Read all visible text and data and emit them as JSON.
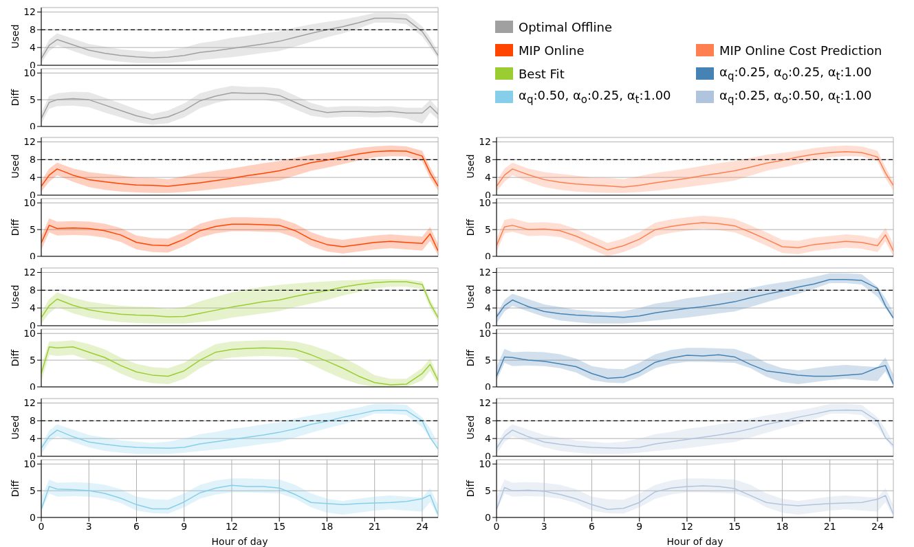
{
  "chart_data": [
    {
      "type": "line",
      "ylabel": "Used",
      "x": [
        0,
        0.5,
        1,
        2,
        3,
        4,
        5,
        6,
        7,
        8,
        9,
        10,
        11,
        12,
        13,
        14,
        15,
        16,
        17,
        18,
        19,
        20,
        21,
        22,
        23,
        24,
        24.5,
        25
      ],
      "xlim": [
        0,
        25
      ],
      "xticks": [
        0,
        3,
        6,
        9,
        12,
        15,
        18,
        21,
        24
      ],
      "ylim": [
        0,
        13
      ],
      "yticks": [
        0,
        4,
        8,
        12
      ],
      "grid": true,
      "tick_labels": "y",
      "legend": "top right",
      "ref_lines": [
        {
          "axis": "y",
          "value": 8,
          "color": "#000000",
          "line_style": "dashed"
        }
      ],
      "series": [
        {
          "name": "Optimal Offline",
          "color": "#a0a0a0",
          "values": [
            1.5,
            4.5,
            5.8,
            4.6,
            3.4,
            2.7,
            2.2,
            1.9,
            1.7,
            1.8,
            2.2,
            2.9,
            3.3,
            3.8,
            4.3,
            4.8,
            5.4,
            6.3,
            7.2,
            8.0,
            8.7,
            9.6,
            10.6,
            10.6,
            10.4,
            7.6,
            5.0,
            2.2
          ],
          "lower": [
            0.5,
            3.2,
            4.5,
            3.2,
            2.0,
            1.2,
            0.8,
            0.5,
            0.5,
            0.5,
            0.8,
            1.2,
            1.5,
            1.8,
            2.3,
            2.8,
            3.2,
            4.2,
            5.3,
            6.3,
            7.2,
            8.3,
            9.6,
            9.6,
            9.3,
            6.5,
            4.0,
            1.5
          ],
          "upper": [
            2.5,
            5.8,
            7.2,
            6.0,
            4.8,
            4.2,
            3.6,
            3.3,
            3.0,
            3.3,
            4.0,
            5.0,
            5.5,
            6.2,
            6.6,
            7.2,
            7.7,
            8.5,
            9.2,
            9.8,
            10.3,
            11.0,
            11.8,
            11.8,
            11.6,
            8.8,
            6.2,
            3.0
          ]
        }
      ]
    },
    {
      "type": "line",
      "ylabel": "Diff",
      "x": [
        0,
        0.5,
        1,
        2,
        3,
        4,
        5,
        6,
        7,
        8,
        9,
        10,
        11,
        12,
        13,
        14,
        15,
        16,
        17,
        18,
        19,
        20,
        21,
        22,
        23,
        24,
        24.5,
        25
      ],
      "xlim": [
        0,
        25
      ],
      "xticks": [
        0,
        3,
        6,
        9,
        12,
        15,
        18,
        21,
        24
      ],
      "ylim": [
        0,
        10.8
      ],
      "yticks": [
        0,
        5,
        10
      ],
      "grid": true,
      "tick_labels": "y",
      "series": [
        {
          "color": "#a0a0a0",
          "values": [
            1.5,
            4.5,
            5.0,
            5.2,
            5.0,
            4.0,
            3.0,
            2.0,
            1.3,
            1.8,
            3.0,
            4.8,
            5.7,
            6.3,
            6.2,
            6.2,
            5.8,
            4.5,
            3.2,
            2.6,
            2.8,
            2.8,
            2.7,
            2.8,
            2.5,
            2.5,
            3.8,
            2.3
          ],
          "lower": [
            0.5,
            3.3,
            3.8,
            3.9,
            3.6,
            2.6,
            1.7,
            0.8,
            0.3,
            0.6,
            1.7,
            3.4,
            4.4,
            5.0,
            5.0,
            5.0,
            4.5,
            3.2,
            2.0,
            1.6,
            1.8,
            1.8,
            1.7,
            1.8,
            1.5,
            0.5,
            2.6,
            1.3
          ],
          "upper": [
            2.5,
            5.7,
            6.2,
            6.5,
            6.4,
            5.4,
            4.3,
            3.2,
            2.3,
            3.0,
            4.3,
            6.2,
            7.0,
            7.6,
            7.4,
            7.4,
            7.1,
            5.8,
            4.4,
            3.6,
            3.8,
            3.8,
            3.7,
            3.8,
            3.5,
            3.5,
            5.0,
            3.3
          ]
        }
      ]
    },
    {
      "type": "line",
      "ylabel": "Used",
      "x": [
        0,
        0.5,
        1,
        2,
        3,
        4,
        5,
        6,
        7,
        8,
        9,
        10,
        11,
        12,
        13,
        14,
        15,
        16,
        17,
        18,
        19,
        20,
        21,
        22,
        23,
        24,
        24.5,
        25
      ],
      "xlim": [
        0,
        25
      ],
      "xticks": [
        0,
        3,
        6,
        9,
        12,
        15,
        18,
        21,
        24
      ],
      "ylim": [
        0,
        13
      ],
      "yticks": [
        0,
        4,
        8,
        12
      ],
      "grid": true,
      "tick_labels": "y",
      "legend": "top right",
      "ref_lines": [
        {
          "axis": "y",
          "value": 8,
          "color": "#000000",
          "line_style": "dashed"
        }
      ],
      "series": [
        {
          "name": "MIP Online",
          "color": "#ff4500",
          "values": [
            2.0,
            4.5,
            5.9,
            4.5,
            3.5,
            3.0,
            2.6,
            2.3,
            2.2,
            2.0,
            2.4,
            2.8,
            3.3,
            3.8,
            4.4,
            4.9,
            5.5,
            6.4,
            7.3,
            7.9,
            8.6,
            9.3,
            9.8,
            10.0,
            9.9,
            8.8,
            5.0,
            2.0
          ],
          "lower": [
            0.8,
            3.0,
            4.5,
            3.0,
            1.8,
            1.2,
            0.8,
            0.6,
            0.5,
            0.5,
            0.7,
            1.0,
            1.4,
            1.8,
            2.3,
            2.8,
            3.3,
            4.4,
            5.5,
            6.2,
            7.0,
            7.8,
            8.5,
            8.8,
            8.7,
            7.6,
            3.8,
            1.0
          ],
          "upper": [
            3.2,
            6.0,
            7.3,
            6.0,
            5.2,
            4.8,
            4.4,
            4.0,
            3.9,
            3.6,
            4.3,
            5.0,
            5.5,
            6.0,
            6.6,
            7.2,
            7.7,
            8.4,
            9.1,
            9.5,
            10.0,
            10.6,
            11.0,
            11.2,
            11.0,
            10.0,
            6.3,
            3.0
          ]
        }
      ]
    },
    {
      "type": "line",
      "ylabel": "Diff",
      "x": [
        0,
        0.5,
        1,
        2,
        3,
        4,
        5,
        6,
        7,
        8,
        9,
        10,
        11,
        12,
        13,
        14,
        15,
        16,
        17,
        18,
        19,
        20,
        21,
        22,
        23,
        24,
        24.5,
        25
      ],
      "xlim": [
        0,
        25
      ],
      "xticks": [
        0,
        3,
        6,
        9,
        12,
        15,
        18,
        21,
        24
      ],
      "ylim": [
        0,
        10.8
      ],
      "yticks": [
        0,
        5,
        10
      ],
      "grid": true,
      "tick_labels": "y",
      "series": [
        {
          "color": "#ff4500",
          "values": [
            2.5,
            5.8,
            5.2,
            5.3,
            5.2,
            4.8,
            4.0,
            2.6,
            2.1,
            2.0,
            3.2,
            4.8,
            5.6,
            6.0,
            6.0,
            5.9,
            5.8,
            4.8,
            3.2,
            2.2,
            1.8,
            2.2,
            2.6,
            2.8,
            2.6,
            2.4,
            4.2,
            1.0
          ],
          "lower": [
            1.2,
            4.5,
            3.9,
            4.0,
            3.9,
            3.5,
            2.7,
            1.3,
            0.8,
            0.7,
            1.9,
            3.5,
            4.3,
            4.7,
            4.7,
            4.6,
            4.5,
            3.5,
            1.9,
            0.9,
            0.5,
            0.9,
            1.3,
            1.5,
            1.3,
            1.1,
            2.9,
            0.2
          ],
          "upper": [
            3.8,
            7.1,
            6.5,
            6.6,
            6.5,
            6.1,
            5.3,
            3.9,
            3.4,
            3.3,
            4.5,
            6.1,
            6.9,
            7.3,
            7.3,
            7.2,
            7.1,
            6.1,
            4.5,
            3.5,
            3.1,
            3.5,
            3.9,
            4.1,
            3.9,
            3.7,
            5.5,
            2.3
          ]
        }
      ]
    },
    {
      "type": "line",
      "ylabel": "Used",
      "x": [
        0,
        0.5,
        1,
        2,
        3,
        4,
        5,
        6,
        7,
        8,
        9,
        10,
        11,
        12,
        13,
        14,
        15,
        16,
        17,
        18,
        19,
        20,
        21,
        22,
        23,
        24,
        24.5,
        25
      ],
      "xlim": [
        0,
        25
      ],
      "xticks": [
        0,
        3,
        6,
        9,
        12,
        15,
        18,
        21,
        24
      ],
      "ylim": [
        0,
        13
      ],
      "yticks": [
        0,
        4,
        8,
        12
      ],
      "grid": true,
      "tick_labels": "y",
      "legend": "top right",
      "ref_lines": [
        {
          "axis": "y",
          "value": 8,
          "color": "#000000",
          "line_style": "dashed"
        }
      ],
      "series": [
        {
          "name": "MIP Online Cost Prediction",
          "color": "#ff7f50",
          "values": [
            2.0,
            4.5,
            5.9,
            4.6,
            3.5,
            2.9,
            2.5,
            2.3,
            2.1,
            1.8,
            2.2,
            2.8,
            3.3,
            3.8,
            4.4,
            4.9,
            5.5,
            6.3,
            7.2,
            7.8,
            8.6,
            9.2,
            9.6,
            9.8,
            9.6,
            8.6,
            5.0,
            2.2
          ],
          "lower": [
            0.8,
            3.0,
            4.5,
            3.0,
            1.8,
            1.2,
            0.8,
            0.6,
            0.5,
            0.5,
            0.7,
            1.0,
            1.4,
            1.8,
            2.3,
            2.8,
            3.3,
            4.4,
            5.5,
            6.2,
            7.0,
            7.8,
            8.5,
            8.8,
            8.7,
            7.6,
            3.8,
            1.0
          ],
          "upper": [
            3.2,
            6.0,
            7.3,
            6.0,
            5.2,
            4.8,
            4.4,
            4.0,
            3.9,
            3.6,
            4.3,
            5.0,
            5.5,
            6.0,
            6.6,
            7.2,
            7.7,
            8.4,
            9.1,
            9.5,
            10.0,
            10.6,
            11.0,
            11.2,
            11.0,
            10.0,
            6.3,
            3.0
          ]
        }
      ]
    },
    {
      "type": "line",
      "ylabel": "Diff",
      "x": [
        0,
        0.5,
        1,
        2,
        3,
        4,
        5,
        6,
        7,
        8,
        9,
        10,
        11,
        12,
        13,
        14,
        15,
        16,
        17,
        18,
        19,
        20,
        21,
        22,
        23,
        24,
        24.5,
        25
      ],
      "xlim": [
        0,
        25
      ],
      "xticks": [
        0,
        3,
        6,
        9,
        12,
        15,
        18,
        21,
        24
      ],
      "ylim": [
        0,
        10.8
      ],
      "yticks": [
        0,
        5,
        10
      ],
      "grid": true,
      "tick_labels": "y",
      "series": [
        {
          "color": "#ff7f50",
          "values": [
            2.0,
            5.5,
            5.8,
            5.0,
            5.1,
            4.8,
            3.8,
            2.5,
            1.2,
            2.0,
            3.2,
            5.0,
            5.6,
            6.0,
            6.3,
            6.1,
            5.7,
            4.5,
            3.2,
            1.8,
            1.6,
            2.2,
            2.5,
            2.8,
            2.6,
            2.0,
            4.0,
            1.0
          ],
          "lower": [
            0.8,
            4.3,
            4.6,
            3.8,
            3.9,
            3.6,
            2.6,
            1.3,
            0.0,
            0.8,
            2.0,
            3.8,
            4.4,
            4.8,
            5.1,
            4.9,
            4.5,
            3.3,
            2.0,
            0.6,
            0.4,
            1.0,
            1.3,
            1.6,
            1.4,
            0.8,
            2.8,
            0.0
          ],
          "upper": [
            3.3,
            6.8,
            7.1,
            6.3,
            6.4,
            6.1,
            5.1,
            3.8,
            2.5,
            3.3,
            4.5,
            6.3,
            6.9,
            7.3,
            7.6,
            7.4,
            7.0,
            5.8,
            4.5,
            3.1,
            2.9,
            3.5,
            3.8,
            4.1,
            3.9,
            3.3,
            5.3,
            2.3
          ]
        }
      ]
    },
    {
      "type": "line",
      "ylabel": "Used",
      "x": [
        0,
        0.5,
        1,
        2,
        3,
        4,
        5,
        6,
        7,
        8,
        9,
        10,
        11,
        12,
        13,
        14,
        15,
        16,
        17,
        18,
        19,
        20,
        21,
        22,
        23,
        24,
        24.5,
        25
      ],
      "xlim": [
        0,
        25
      ],
      "xticks": [
        0,
        3,
        6,
        9,
        12,
        15,
        18,
        21,
        24
      ],
      "ylim": [
        0,
        13
      ],
      "yticks": [
        0,
        4,
        8,
        12
      ],
      "grid": true,
      "tick_labels": "y",
      "legend": "top right",
      "ref_lines": [
        {
          "axis": "y",
          "value": 8,
          "color": "#000000",
          "line_style": "dashed"
        }
      ],
      "series": [
        {
          "name": "Best Fit",
          "color": "#9acd32",
          "values": [
            1.8,
            4.5,
            6.0,
            4.6,
            3.6,
            3.0,
            2.6,
            2.4,
            2.3,
            2.0,
            2.1,
            2.8,
            3.5,
            4.2,
            4.8,
            5.4,
            5.8,
            6.6,
            7.3,
            7.9,
            8.7,
            9.3,
            9.7,
            9.9,
            9.9,
            9.3,
            5.0,
            1.8
          ],
          "lower": [
            0.5,
            2.8,
            4.2,
            2.8,
            1.8,
            1.2,
            0.8,
            0.6,
            0.5,
            0.5,
            0.5,
            0.8,
            1.2,
            1.8,
            2.3,
            2.8,
            3.3,
            4.2,
            5.0,
            5.8,
            6.8,
            7.6,
            8.4,
            8.8,
            8.8,
            8.3,
            4.0,
            1.0
          ],
          "upper": [
            3.0,
            6.0,
            7.5,
            6.3,
            5.4,
            4.9,
            4.5,
            4.3,
            4.2,
            3.8,
            4.2,
            5.5,
            6.5,
            7.5,
            8.2,
            8.8,
            9.2,
            9.5,
            9.8,
            10.0,
            10.2,
            10.3,
            10.5,
            10.5,
            10.4,
            10.0,
            6.0,
            2.6
          ]
        }
      ]
    },
    {
      "type": "line",
      "ylabel": "Diff",
      "x": [
        0,
        0.5,
        1,
        2,
        3,
        4,
        5,
        6,
        7,
        8,
        9,
        10,
        11,
        12,
        13,
        14,
        15,
        16,
        17,
        18,
        19,
        20,
        21,
        22,
        23,
        24,
        24.5,
        25
      ],
      "xlim": [
        0,
        25
      ],
      "xticks": [
        0,
        3,
        6,
        9,
        12,
        15,
        18,
        21,
        24
      ],
      "ylim": [
        0,
        10.8
      ],
      "yticks": [
        0,
        5,
        10
      ],
      "grid": true,
      "tick_labels": "y",
      "series": [
        {
          "color": "#9acd32",
          "values": [
            2.5,
            7.5,
            7.3,
            7.5,
            6.5,
            5.5,
            4.0,
            2.8,
            2.2,
            2.0,
            3.0,
            5.0,
            6.5,
            7.0,
            7.2,
            7.3,
            7.2,
            7.0,
            6.0,
            4.8,
            3.5,
            2.0,
            0.8,
            0.4,
            0.5,
            2.5,
            4.2,
            1.2
          ],
          "lower": [
            1.0,
            6.0,
            5.8,
            6.0,
            5.0,
            4.0,
            2.5,
            1.3,
            0.7,
            0.5,
            1.5,
            3.5,
            5.0,
            5.5,
            5.7,
            5.8,
            5.7,
            5.5,
            4.2,
            2.8,
            1.5,
            0.5,
            0.0,
            0.0,
            0.0,
            1.2,
            3.0,
            0.4
          ],
          "upper": [
            4.0,
            8.5,
            8.5,
            8.7,
            8.0,
            7.0,
            5.5,
            4.3,
            3.7,
            3.5,
            4.5,
            6.5,
            8.0,
            8.5,
            8.6,
            8.7,
            8.7,
            8.5,
            7.8,
            6.8,
            5.5,
            4.0,
            2.2,
            1.5,
            1.5,
            3.5,
            5.3,
            2.0
          ]
        }
      ]
    },
    {
      "type": "line",
      "ylabel": "Used",
      "x": [
        0,
        0.5,
        1,
        2,
        3,
        4,
        5,
        6,
        7,
        8,
        9,
        10,
        11,
        12,
        13,
        14,
        15,
        16,
        17,
        18,
        19,
        20,
        21,
        22,
        23,
        24,
        24.5,
        25
      ],
      "xlim": [
        0,
        25
      ],
      "xticks": [
        0,
        3,
        6,
        9,
        12,
        15,
        18,
        21,
        24
      ],
      "ylim": [
        0,
        13
      ],
      "yticks": [
        0,
        4,
        8,
        12
      ],
      "grid": true,
      "tick_labels": "y",
      "legend": "top right",
      "ref_lines": [
        {
          "axis": "y",
          "value": 8,
          "color": "#000000",
          "line_style": "dashed"
        }
      ],
      "series": [
        {
          "name": "α$_{q}$:0.25, α$_{o}$:0.25, α$_{t}$:1.00",
          "color": "#4682b4",
          "values": [
            2.0,
            4.5,
            5.8,
            4.3,
            3.2,
            2.7,
            2.4,
            2.2,
            2.1,
            1.9,
            2.2,
            2.9,
            3.4,
            3.9,
            4.3,
            4.8,
            5.4,
            6.3,
            7.1,
            7.8,
            8.7,
            9.4,
            10.4,
            10.4,
            10.2,
            8.4,
            4.5,
            1.7
          ],
          "lower": [
            0.5,
            3.2,
            4.5,
            3.2,
            2.0,
            1.2,
            0.8,
            0.5,
            0.5,
            0.5,
            0.8,
            1.2,
            1.5,
            1.8,
            2.3,
            2.8,
            3.2,
            4.2,
            5.3,
            6.3,
            7.2,
            8.3,
            9.6,
            9.6,
            9.3,
            6.5,
            4.0,
            1.5
          ],
          "upper": [
            2.5,
            5.8,
            7.2,
            6.0,
            4.8,
            4.2,
            3.6,
            3.3,
            3.0,
            3.3,
            4.0,
            5.0,
            5.5,
            6.2,
            6.6,
            7.2,
            7.7,
            8.5,
            9.2,
            9.8,
            10.3,
            11.0,
            11.8,
            11.8,
            11.6,
            8.8,
            6.2,
            3.0
          ]
        }
      ]
    },
    {
      "type": "line",
      "ylabel": "Diff",
      "x": [
        0,
        0.5,
        1,
        2,
        3,
        4,
        5,
        6,
        7,
        8,
        9,
        10,
        11,
        12,
        13,
        14,
        15,
        16,
        17,
        18,
        19,
        20,
        21,
        22,
        23,
        24,
        24.5,
        25
      ],
      "xlim": [
        0,
        25
      ],
      "xticks": [
        0,
        3,
        6,
        9,
        12,
        15,
        18,
        21,
        24
      ],
      "ylim": [
        0,
        10.8
      ],
      "yticks": [
        0,
        5,
        10
      ],
      "grid": true,
      "tick_labels": "y",
      "series": [
        {
          "color": "#4682b4",
          "values": [
            2.0,
            5.6,
            5.5,
            5.0,
            4.8,
            4.3,
            3.8,
            2.5,
            1.6,
            1.8,
            2.8,
            4.6,
            5.4,
            5.9,
            5.8,
            6.0,
            5.6,
            4.2,
            3.0,
            2.6,
            2.2,
            2.0,
            2.0,
            2.2,
            2.4,
            3.6,
            4.0,
            0.5
          ],
          "lower": [
            1.2,
            4.5,
            3.9,
            4.0,
            3.9,
            3.5,
            2.7,
            1.3,
            0.8,
            0.7,
            1.9,
            3.5,
            4.3,
            4.7,
            4.7,
            4.6,
            4.5,
            3.5,
            1.9,
            0.9,
            0.5,
            0.9,
            1.3,
            1.5,
            1.3,
            1.1,
            2.9,
            0.2
          ],
          "upper": [
            3.8,
            7.1,
            6.5,
            6.6,
            6.5,
            6.1,
            5.3,
            3.9,
            3.4,
            3.3,
            4.5,
            6.1,
            6.9,
            7.3,
            7.3,
            7.2,
            7.1,
            6.1,
            4.5,
            3.5,
            3.1,
            3.5,
            3.9,
            4.1,
            3.9,
            3.7,
            5.5,
            2.3
          ]
        }
      ]
    },
    {
      "type": "line",
      "ylabel": "Used",
      "x": [
        0,
        0.5,
        1,
        2,
        3,
        4,
        5,
        6,
        7,
        8,
        9,
        10,
        11,
        12,
        13,
        14,
        15,
        16,
        17,
        18,
        19,
        20,
        21,
        22,
        23,
        24,
        24.5,
        25
      ],
      "xlim": [
        0,
        25
      ],
      "xticks": [
        0,
        3,
        6,
        9,
        12,
        15,
        18,
        21,
        24
      ],
      "ylim": [
        0,
        13
      ],
      "yticks": [
        0,
        4,
        8,
        12
      ],
      "grid": true,
      "tick_labels": "y",
      "legend": "top right",
      "ref_lines": [
        {
          "axis": "y",
          "value": 8,
          "color": "#000000",
          "line_style": "dashed"
        }
      ],
      "series": [
        {
          "name": "α$_{q}$:0.50, α$_{o}$:0.25, α$_{t}$:1.00",
          "color": "#87ceeb",
          "values": [
            1.8,
            4.5,
            5.9,
            4.4,
            3.2,
            2.7,
            2.3,
            2.0,
            1.9,
            1.8,
            2.0,
            2.8,
            3.3,
            3.8,
            4.3,
            4.8,
            5.4,
            6.2,
            7.2,
            7.9,
            8.8,
            9.5,
            10.3,
            10.4,
            10.3,
            8.0,
            4.2,
            1.6
          ],
          "lower": [
            0.5,
            3.2,
            4.5,
            3.2,
            2.0,
            1.2,
            0.8,
            0.5,
            0.5,
            0.5,
            0.8,
            1.2,
            1.5,
            1.8,
            2.3,
            2.8,
            3.2,
            4.2,
            5.3,
            6.3,
            7.2,
            8.3,
            9.6,
            9.6,
            9.3,
            6.5,
            4.0,
            1.5
          ],
          "upper": [
            2.5,
            5.8,
            7.2,
            6.0,
            4.8,
            4.2,
            3.6,
            3.3,
            3.0,
            3.3,
            4.0,
            5.0,
            5.5,
            6.2,
            6.6,
            7.2,
            7.7,
            8.5,
            9.2,
            9.8,
            10.3,
            11.0,
            11.8,
            11.8,
            11.6,
            8.8,
            6.2,
            3.0
          ]
        }
      ]
    },
    {
      "type": "line",
      "ylabel": "Diff",
      "xlabel": "Hour of day",
      "x": [
        0,
        0.5,
        1,
        2,
        3,
        4,
        5,
        6,
        7,
        8,
        9,
        10,
        11,
        12,
        13,
        14,
        15,
        16,
        17,
        18,
        19,
        20,
        21,
        22,
        23,
        24,
        24.5,
        25
      ],
      "xlim": [
        0,
        25
      ],
      "xticks": [
        0,
        3,
        6,
        9,
        12,
        15,
        18,
        21,
        24
      ],
      "ylim": [
        0,
        10.8
      ],
      "yticks": [
        0,
        5,
        10
      ],
      "grid": true,
      "series": [
        {
          "color": "#87ceeb",
          "values": [
            1.5,
            5.8,
            5.3,
            5.2,
            5.0,
            4.5,
            3.6,
            2.4,
            1.6,
            1.6,
            2.9,
            4.6,
            5.5,
            6.0,
            5.8,
            5.8,
            5.5,
            4.3,
            2.8,
            2.6,
            2.4,
            2.6,
            2.7,
            2.8,
            3.0,
            3.5,
            4.2,
            0.5
          ],
          "lower": [
            1.2,
            4.5,
            3.9,
            4.0,
            3.9,
            3.5,
            2.7,
            1.3,
            0.8,
            0.7,
            1.9,
            3.5,
            4.3,
            4.7,
            4.7,
            4.6,
            4.5,
            3.5,
            1.9,
            0.9,
            0.5,
            0.9,
            1.3,
            1.5,
            1.3,
            1.1,
            2.9,
            0.2
          ],
          "upper": [
            3.8,
            7.1,
            6.5,
            6.6,
            6.5,
            6.1,
            5.3,
            3.9,
            3.4,
            3.3,
            4.5,
            6.1,
            6.9,
            7.3,
            7.3,
            7.2,
            7.1,
            6.1,
            4.5,
            3.5,
            3.1,
            3.5,
            3.9,
            4.1,
            3.9,
            3.7,
            5.5,
            2.3
          ]
        }
      ]
    },
    {
      "type": "line",
      "ylabel": "Used",
      "x": [
        0,
        0.5,
        1,
        2,
        3,
        4,
        5,
        6,
        7,
        8,
        9,
        10,
        11,
        12,
        13,
        14,
        15,
        16,
        17,
        18,
        19,
        20,
        21,
        22,
        23,
        24,
        24.5,
        25
      ],
      "xlim": [
        0,
        25
      ],
      "xticks": [
        0,
        3,
        6,
        9,
        12,
        15,
        18,
        21,
        24
      ],
      "ylim": [
        0,
        13
      ],
      "yticks": [
        0,
        4,
        8,
        12
      ],
      "grid": true,
      "tick_labels": "y",
      "legend": "top right",
      "ref_lines": [
        {
          "axis": "y",
          "value": 8,
          "color": "#000000",
          "line_style": "dashed"
        }
      ],
      "series": [
        {
          "name": "α$_{q}$:0.25, α$_{o}$:0.50, α$_{t}$:1.00",
          "color": "#b0c4de",
          "values": [
            1.8,
            4.5,
            5.9,
            4.4,
            3.2,
            2.7,
            2.3,
            2.0,
            1.9,
            1.8,
            2.0,
            2.8,
            3.3,
            3.8,
            4.3,
            4.8,
            5.4,
            6.2,
            7.2,
            7.9,
            8.8,
            9.5,
            10.3,
            10.4,
            10.3,
            8.0,
            4.2,
            2.4
          ],
          "lower": [
            0.5,
            3.2,
            4.5,
            3.2,
            2.0,
            1.2,
            0.8,
            0.5,
            0.5,
            0.5,
            0.8,
            1.2,
            1.5,
            1.8,
            2.3,
            2.8,
            3.2,
            4.2,
            5.3,
            6.3,
            7.2,
            8.3,
            9.6,
            9.6,
            9.3,
            6.5,
            4.0,
            1.5
          ],
          "upper": [
            2.5,
            5.8,
            7.2,
            6.0,
            4.8,
            4.2,
            3.6,
            3.3,
            3.0,
            3.3,
            4.0,
            5.0,
            5.5,
            6.2,
            6.6,
            7.2,
            7.7,
            8.5,
            9.2,
            9.8,
            10.3,
            11.0,
            11.8,
            11.8,
            11.6,
            8.8,
            6.2,
            3.0
          ]
        }
      ]
    },
    {
      "type": "line",
      "ylabel": "Diff",
      "xlabel": "Hour of day",
      "x": [
        0,
        0.5,
        1,
        2,
        3,
        4,
        5,
        6,
        7,
        8,
        9,
        10,
        11,
        12,
        13,
        14,
        15,
        16,
        17,
        18,
        19,
        20,
        21,
        22,
        23,
        24,
        24.5,
        25
      ],
      "xlim": [
        0,
        25
      ],
      "xticks": [
        0,
        3,
        6,
        9,
        12,
        15,
        18,
        21,
        24
      ],
      "ylim": [
        0,
        10.8
      ],
      "yticks": [
        0,
        5,
        10
      ],
      "grid": true,
      "series": [
        {
          "color": "#b0c4de",
          "values": [
            1.5,
            5.6,
            5.0,
            5.1,
            4.9,
            4.3,
            3.5,
            2.4,
            1.5,
            1.7,
            2.8,
            4.8,
            5.5,
            5.8,
            5.9,
            5.8,
            5.4,
            4.1,
            2.8,
            2.4,
            2.2,
            2.4,
            2.6,
            2.7,
            2.8,
            3.4,
            4.1,
            0.6
          ],
          "lower": [
            1.2,
            4.5,
            3.9,
            4.0,
            3.9,
            3.5,
            2.7,
            1.3,
            0.8,
            0.7,
            1.9,
            3.5,
            4.3,
            4.7,
            4.7,
            4.6,
            4.5,
            3.5,
            1.9,
            0.9,
            0.5,
            0.9,
            1.3,
            1.5,
            1.3,
            1.1,
            2.9,
            0.2
          ],
          "upper": [
            3.8,
            7.1,
            6.5,
            6.6,
            6.5,
            6.1,
            5.3,
            3.9,
            3.4,
            3.3,
            4.5,
            6.1,
            6.9,
            7.3,
            7.3,
            7.2,
            7.1,
            6.1,
            4.5,
            3.5,
            3.1,
            3.5,
            3.9,
            4.1,
            3.9,
            3.7,
            5.5,
            2.3
          ]
        }
      ]
    }
  ]
}
